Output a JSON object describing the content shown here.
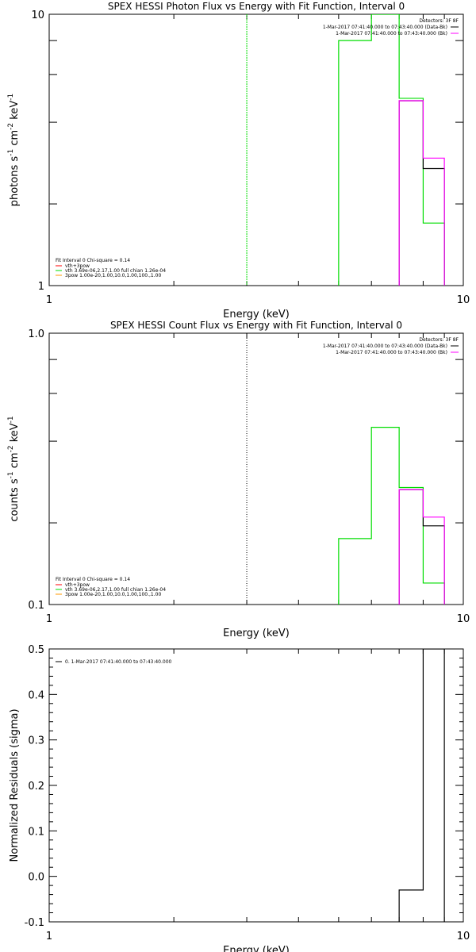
{
  "colors": {
    "data": "#000000",
    "background_sub": "#ff00ff",
    "fit_total": "#ff0000",
    "fit_vth": "#00dd00",
    "fit_3pow": "#ff9900",
    "background": "#ffffff"
  },
  "chart_data": [
    {
      "type": "line",
      "title": "SPEX HESSI Photon Flux vs Energy with Fit Function, Interval 0",
      "xlabel": "Energy (keV)",
      "ylabel_parts": [
        "photons s",
        "-1",
        " cm",
        "-2",
        " keV",
        "-1"
      ],
      "xscale": "log",
      "yscale": "log",
      "xlim": [
        1,
        10
      ],
      "ylim": [
        1,
        10
      ],
      "xticks": [
        "1",
        "10"
      ],
      "yticks": [
        "1",
        "10"
      ],
      "fit_line_x": 3,
      "fit_line_style": "solid",
      "legend_right": {
        "title": "Detectors: 3F 8F",
        "entries": [
          {
            "text": "1-Mar-2017 07:41:40.000 to 07:43:40.000 (Data-Bk)",
            "color": "#000000"
          },
          {
            "text": "1-Mar-2017 07:41:40.000 to 07:43:40.000 (Bk)",
            "color": "#ff00ff"
          }
        ]
      },
      "legend_left": {
        "header": "Fit Interval 0   Chi-square = 0.14",
        "entries": [
          {
            "text": "vth+3pow",
            "color": "#ff0000"
          },
          {
            "text": "vth 3.69e-06,2.17,1.00  full chian 1.26e-04",
            "color": "#00dd00"
          },
          {
            "text": "3pow 1.00e-20,1.00,10.0,1.00,100.,1.00",
            "color": "#ff9900"
          }
        ]
      },
      "series": [
        {
          "name": "vth+3pow",
          "color": "#00dd00",
          "edges": [
            5.0,
            6.0,
            7.0,
            8.0,
            9.0
          ],
          "values": [
            8.0,
            10.0,
            4.9,
            1.7
          ]
        },
        {
          "name": "Data-Bk",
          "color": "#000000",
          "edges": [
            7.0,
            8.0,
            9.0
          ],
          "values": [
            4.8,
            2.7
          ]
        },
        {
          "name": "Bk",
          "color": "#ff00ff",
          "edges": [
            7.0,
            8.0,
            9.0
          ],
          "values": [
            4.8,
            2.95
          ]
        }
      ]
    },
    {
      "type": "line",
      "title": "SPEX HESSI Count Flux vs Energy with Fit Function, Interval 0",
      "xlabel": "Energy (keV)",
      "ylabel_parts": [
        "counts s",
        "-1",
        " cm",
        "-2",
        " keV",
        "-1"
      ],
      "xscale": "log",
      "yscale": "log",
      "xlim": [
        1,
        10
      ],
      "ylim": [
        0.1,
        1.0
      ],
      "xticks": [
        "1",
        "10"
      ],
      "yticks": [
        "0.1",
        "1.0"
      ],
      "fit_line_x": 3,
      "fit_line_style": "dotted",
      "legend_right": {
        "title": "Detectors: 3F 8F",
        "entries": [
          {
            "text": "1-Mar-2017 07:41:40.000 to 07:43:40.000 (Data-Bk)",
            "color": "#000000"
          },
          {
            "text": "1-Mar-2017 07:41:40.000 to 07:43:40.000 (Bk)",
            "color": "#ff00ff"
          }
        ]
      },
      "legend_left": {
        "header": "Fit Interval 0   Chi-square = 0.14",
        "entries": [
          {
            "text": "vth+3pow",
            "color": "#ff0000"
          },
          {
            "text": "vth 3.69e-06,2.17,1.00  full chian 1.26e-04",
            "color": "#00dd00"
          },
          {
            "text": "3pow 1.00e-20,1.00,10.0,1.00,100.,1.00",
            "color": "#ff9900"
          }
        ]
      },
      "series": [
        {
          "name": "vth+3pow",
          "color": "#00dd00",
          "edges": [
            5.0,
            6.0,
            7.0,
            8.0,
            9.0
          ],
          "values": [
            0.175,
            0.45,
            0.27,
            0.12
          ]
        },
        {
          "name": "Data-Bk",
          "color": "#000000",
          "edges": [
            7.0,
            8.0,
            9.0
          ],
          "values": [
            0.265,
            0.195
          ]
        },
        {
          "name": "Bk",
          "color": "#ff00ff",
          "edges": [
            7.0,
            8.0,
            9.0
          ],
          "values": [
            0.265,
            0.21
          ]
        }
      ]
    },
    {
      "type": "line",
      "title": "",
      "xlabel": "Energy (keV)",
      "ylabel_parts": [
        "Normalized Residuals (sigma)"
      ],
      "xscale": "log",
      "yscale": "linear",
      "xlim": [
        1,
        10
      ],
      "ylim": [
        -0.1,
        0.5
      ],
      "xticks": [
        "1",
        "10"
      ],
      "yticks": [
        "-0.1",
        "0.0",
        "0.1",
        "0.2",
        "0.3",
        "0.4",
        "0.5"
      ],
      "yticks_values": [
        -0.1,
        0.0,
        0.1,
        0.2,
        0.3,
        0.4,
        0.5
      ],
      "legend_left_top": {
        "text": "0. 1-Mar-2017 07:41:40.000 to 07:43:40.000",
        "color": "#000000"
      },
      "series": [
        {
          "name": "residuals",
          "color": "#000000",
          "edges": [
            7.0,
            8.0,
            9.0
          ],
          "values": [
            -0.03,
            0.5
          ]
        }
      ]
    }
  ]
}
